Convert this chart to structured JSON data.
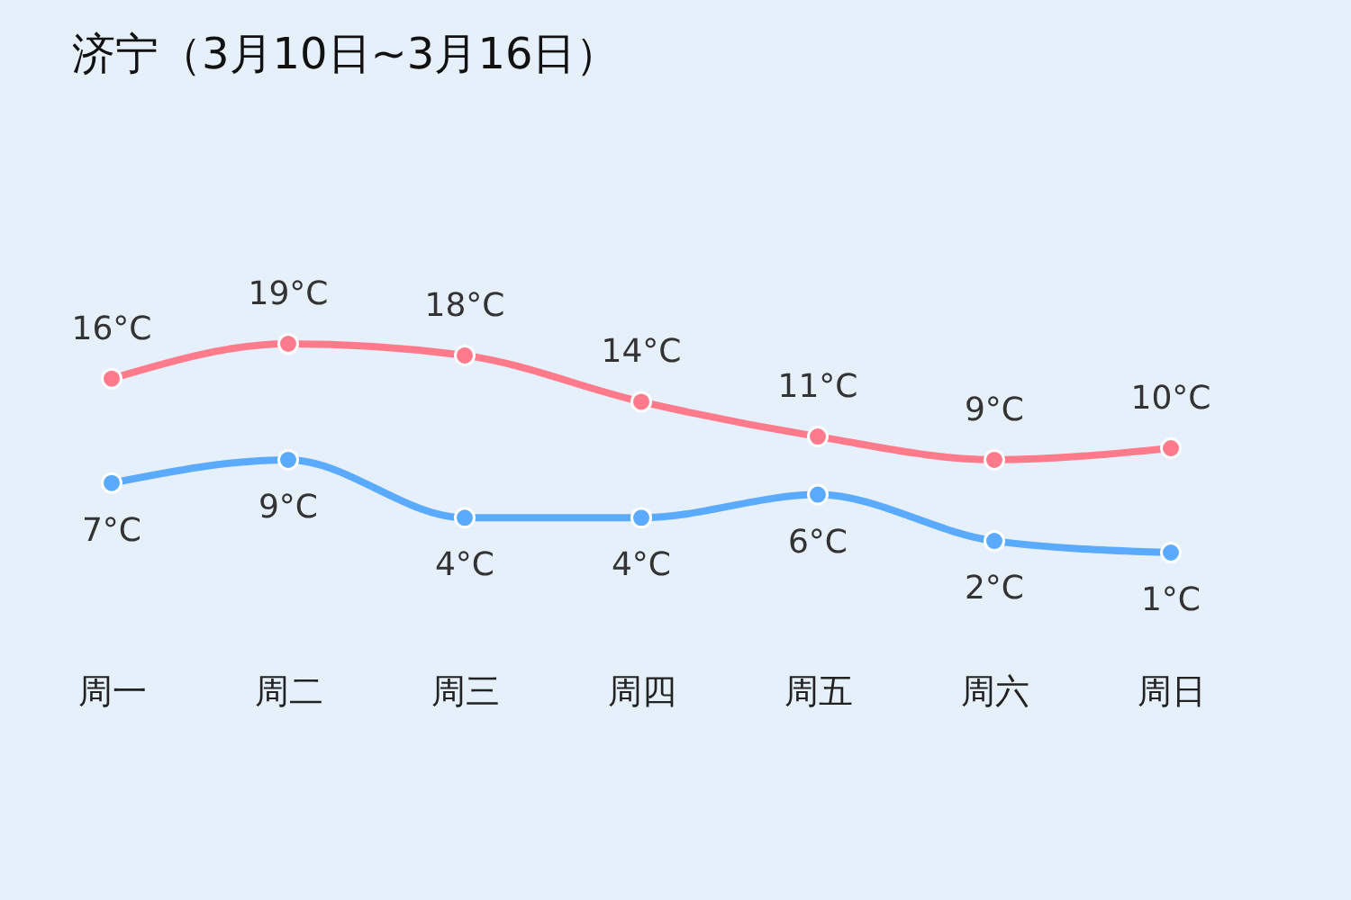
{
  "chart_data": {
    "type": "line",
    "title": "济宁（3月10日~3月16日）",
    "categories": [
      "周一",
      "周二",
      "周三",
      "周四",
      "周五",
      "周六",
      "周日"
    ],
    "series": [
      {
        "color": "#ff7a8a",
        "values": [
          16,
          19,
          18,
          14,
          11,
          9,
          10
        ],
        "value_labels": [
          "16°C",
          "19°C",
          "18°C",
          "14°C",
          "11°C",
          "9°C",
          "10°C"
        ]
      },
      {
        "color": "#5aabff",
        "values": [
          7,
          9,
          4,
          4,
          6,
          2,
          1
        ],
        "value_labels": [
          "7°C",
          "9°C",
          "4°C",
          "4°C",
          "6°C",
          "2°C",
          "1°C"
        ]
      }
    ],
    "marker": "circle",
    "grid": false,
    "legend": false
  }
}
